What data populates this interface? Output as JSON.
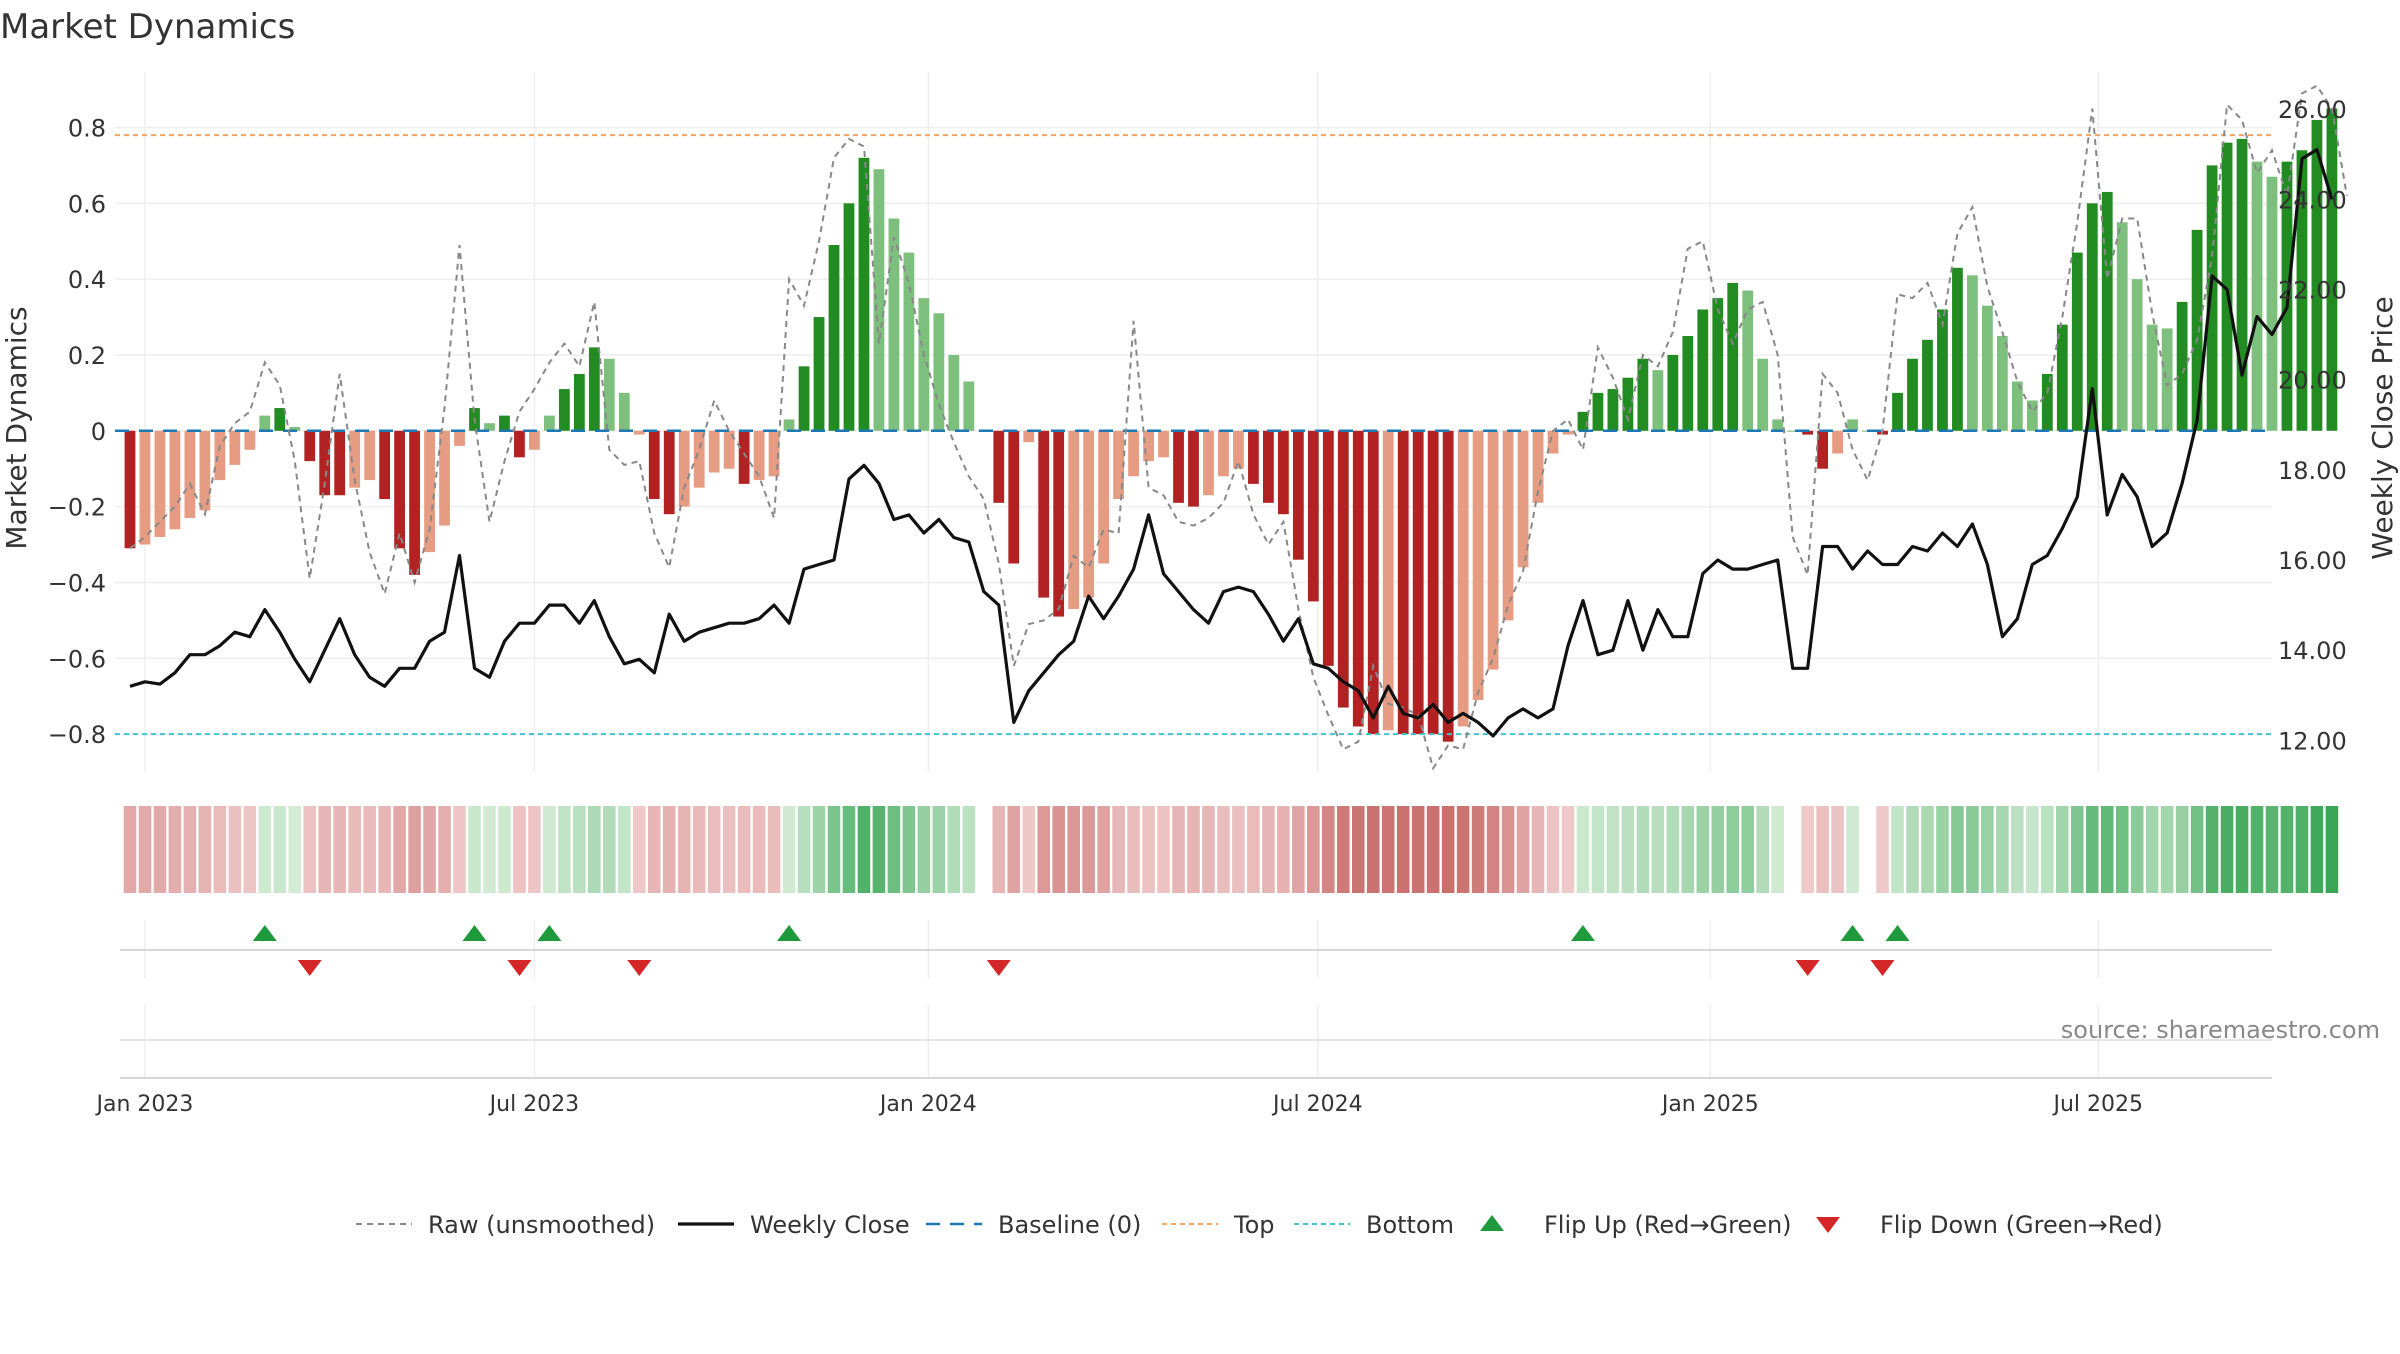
{
  "chart_data": {
    "type": "bar",
    "title": "Market Dynamics",
    "ylabel": "Market Dynamics",
    "y2label": "Weekly Close Price",
    "source": "source: sharemaestro.com",
    "ylim": [
      -0.9,
      0.92
    ],
    "y2lim": [
      11.3,
      26.6
    ],
    "yticks": [
      "-0.8",
      "-0.6",
      "-0.4",
      "-0.2",
      "0",
      "0.2",
      "0.4",
      "0.6",
      "0.8"
    ],
    "y2ticks": [
      "12.00",
      "14.00",
      "16.00",
      "18.00",
      "20.00",
      "22.00",
      "24.00",
      "26.00"
    ],
    "xticks": [
      {
        "label": "Jan 2023",
        "week": 1
      },
      {
        "label": "Jul 2023",
        "week": 27
      },
      {
        "label": "Jan 2024",
        "week": 53.3
      },
      {
        "label": "Jul 2024",
        "week": 79.3
      },
      {
        "label": "Jan 2025",
        "week": 105.5
      },
      {
        "label": "Jul 2025",
        "week": 131.4
      }
    ],
    "xlim": [
      -1,
      143
    ],
    "levels": {
      "top": 0.78,
      "bottom": -0.8,
      "baseline": 0
    },
    "dynamics": [
      -0.31,
      -0.3,
      -0.28,
      -0.26,
      -0.23,
      -0.21,
      -0.13,
      -0.09,
      -0.05,
      0.04,
      0.06,
      0.01,
      -0.08,
      -0.17,
      -0.17,
      -0.15,
      -0.13,
      -0.18,
      -0.31,
      -0.38,
      -0.32,
      -0.25,
      -0.04,
      0.06,
      0.02,
      0.04,
      -0.07,
      -0.05,
      0.04,
      0.11,
      0.15,
      0.22,
      0.19,
      0.1,
      -0.01,
      -0.18,
      -0.22,
      -0.2,
      -0.15,
      -0.11,
      -0.1,
      -0.14,
      -0.13,
      -0.12,
      0.03,
      0.17,
      0.3,
      0.49,
      0.6,
      0.72,
      0.69,
      0.56,
      0.47,
      0.35,
      0.31,
      0.2,
      0.13,
      0.0,
      -0.19,
      -0.35,
      -0.03,
      -0.44,
      -0.49,
      -0.47,
      -0.44,
      -0.35,
      -0.18,
      -0.12,
      -0.08,
      -0.07,
      -0.19,
      -0.2,
      -0.17,
      -0.12,
      -0.1,
      -0.14,
      -0.19,
      -0.22,
      -0.34,
      -0.45,
      -0.62,
      -0.73,
      -0.78,
      -0.8,
      -0.79,
      -0.8,
      -0.8,
      -0.8,
      -0.82,
      -0.78,
      -0.71,
      -0.63,
      -0.5,
      -0.36,
      -0.19,
      -0.06,
      -0.01,
      0.05,
      0.1,
      0.11,
      0.14,
      0.19,
      0.16,
      0.2,
      0.25,
      0.32,
      0.35,
      0.39,
      0.37,
      0.19,
      0.03,
      0.0,
      -0.01,
      -0.1,
      -0.06,
      0.03,
      0.0,
      -0.01,
      0.1,
      0.19,
      0.24,
      0.32,
      0.43,
      0.41,
      0.33,
      0.25,
      0.13,
      0.08,
      0.15,
      0.28,
      0.47,
      0.6,
      0.63,
      0.55,
      0.4,
      0.28,
      0.27,
      0.34,
      0.53,
      0.7,
      0.76,
      0.77,
      0.71,
      0.67,
      0.71,
      0.74,
      0.82,
      0.85
    ],
    "raw": [
      -0.31,
      -0.28,
      -0.24,
      -0.2,
      -0.14,
      -0.22,
      -0.04,
      0.02,
      0.05,
      0.18,
      0.12,
      -0.08,
      -0.39,
      -0.14,
      0.15,
      -0.13,
      -0.32,
      -0.43,
      -0.27,
      -0.4,
      -0.26,
      0.06,
      0.49,
      0.03,
      -0.24,
      -0.08,
      0.05,
      0.11,
      0.18,
      0.23,
      0.17,
      0.34,
      -0.05,
      -0.09,
      -0.08,
      -0.27,
      -0.36,
      -0.15,
      -0.05,
      0.08,
      0.0,
      -0.06,
      -0.12,
      -0.23,
      0.4,
      0.33,
      0.5,
      0.72,
      0.77,
      0.75,
      0.23,
      0.51,
      0.39,
      0.2,
      0.07,
      -0.03,
      -0.12,
      -0.18,
      -0.35,
      -0.62,
      -0.51,
      -0.5,
      -0.47,
      -0.33,
      -0.36,
      -0.26,
      -0.27,
      0.29,
      -0.15,
      -0.17,
      -0.24,
      -0.25,
      -0.23,
      -0.19,
      -0.08,
      -0.22,
      -0.3,
      -0.24,
      -0.47,
      -0.65,
      -0.75,
      -0.84,
      -0.82,
      -0.62,
      -0.72,
      -0.73,
      -0.75,
      -0.89,
      -0.83,
      -0.84,
      -0.69,
      -0.6,
      -0.46,
      -0.37,
      -0.16,
      0.0,
      0.03,
      -0.05,
      0.22,
      0.14,
      0.03,
      0.2,
      0.17,
      0.26,
      0.48,
      0.5,
      0.32,
      0.23,
      0.32,
      0.34,
      0.2,
      -0.28,
      -0.38,
      0.15,
      0.1,
      -0.05,
      -0.13,
      0.0,
      0.36,
      0.35,
      0.39,
      0.28,
      0.52,
      0.59,
      0.38,
      0.26,
      0.13,
      0.05,
      0.1,
      0.3,
      0.55,
      0.85,
      0.4,
      0.56,
      0.56,
      0.31,
      0.12,
      0.15,
      0.24,
      0.46,
      0.86,
      0.82,
      0.68,
      0.74,
      0.62,
      0.89,
      0.91,
      0.85,
      0.62
    ],
    "close": [
      13.2,
      13.3,
      13.25,
      13.5,
      13.9,
      13.9,
      14.1,
      14.4,
      14.3,
      14.9,
      14.4,
      13.8,
      13.3,
      14.0,
      14.7,
      13.9,
      13.4,
      13.2,
      13.6,
      13.6,
      14.2,
      14.4,
      16.1,
      13.6,
      13.4,
      14.2,
      14.6,
      14.6,
      15.0,
      15.0,
      14.6,
      15.1,
      14.3,
      13.7,
      13.8,
      13.5,
      14.8,
      14.2,
      14.4,
      14.5,
      14.6,
      14.6,
      14.7,
      15.0,
      14.6,
      15.8,
      15.9,
      16.0,
      17.8,
      18.1,
      17.7,
      16.9,
      17.0,
      16.6,
      16.9,
      16.5,
      16.4,
      15.3,
      15.0,
      12.4,
      13.1,
      13.5,
      13.9,
      14.2,
      15.2,
      14.7,
      15.2,
      15.8,
      17.0,
      15.7,
      15.3,
      14.9,
      14.6,
      15.3,
      15.4,
      15.3,
      14.8,
      14.2,
      14.7,
      13.7,
      13.6,
      13.3,
      13.1,
      12.5,
      13.2,
      12.6,
      12.5,
      12.8,
      12.4,
      12.6,
      12.4,
      12.1,
      12.5,
      12.7,
      12.5,
      12.7,
      14.1,
      15.1,
      13.9,
      14.0,
      15.1,
      14.0,
      14.9,
      14.3,
      14.3,
      15.7,
      16.0,
      15.8,
      15.8,
      15.9,
      16.0,
      13.6,
      13.6,
      16.3,
      16.3,
      15.8,
      16.2,
      15.9,
      15.9,
      16.3,
      16.2,
      16.6,
      16.3,
      16.8,
      15.9,
      14.3,
      14.7,
      15.9,
      16.1,
      16.7,
      17.4,
      19.8,
      17.0,
      17.9,
      17.4,
      16.3,
      16.6,
      17.7,
      19.1,
      22.3,
      22.0,
      20.1,
      21.4,
      21.0,
      21.6,
      24.9,
      25.1,
      24.0
    ]
  }
}
